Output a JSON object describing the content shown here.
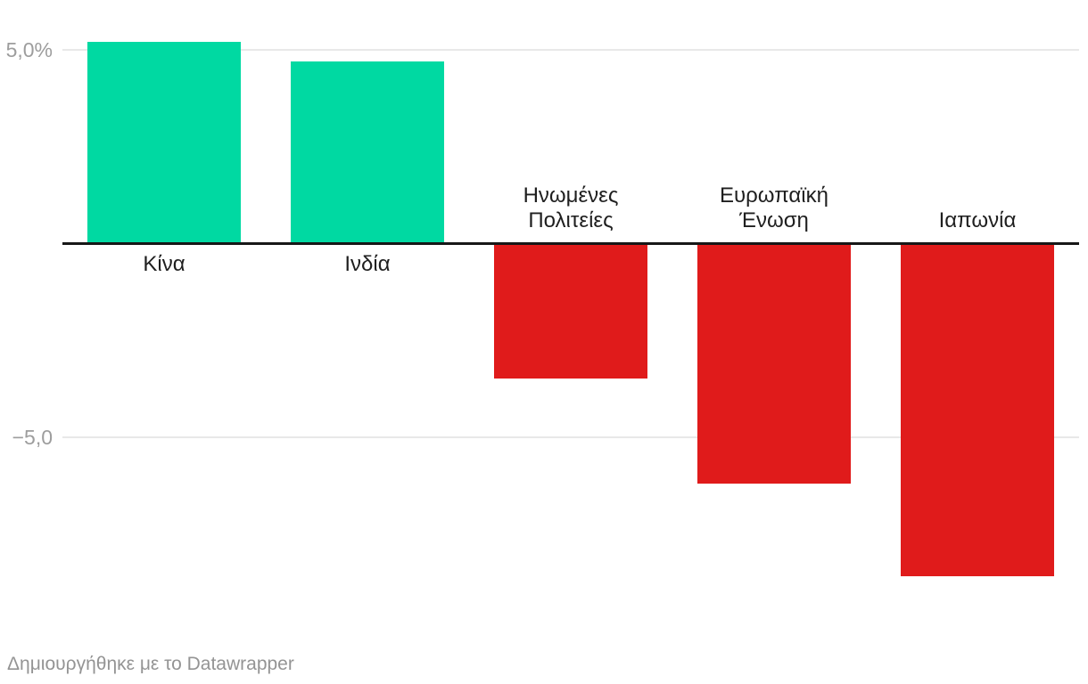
{
  "chart_data": {
    "type": "bar",
    "categories": [
      "Κίνα",
      "Ινδία",
      "Ηνωμένες\nΠολιτείες",
      "Ευρωπαϊκή\nΈνωση",
      "Ιαπωνία"
    ],
    "values": [
      5.2,
      4.7,
      -3.5,
      -6.2,
      -8.6
    ],
    "unit": "%",
    "title": "",
    "xlabel": "",
    "ylabel": "",
    "ylim": [
      -10,
      6.3
    ],
    "yticks": [
      {
        "value": 5,
        "label": "5,0%"
      },
      {
        "value": -5,
        "label": "−5,0"
      }
    ],
    "grid": true,
    "legend": "none",
    "colors": {
      "positive_bar": "#00d9a2",
      "negative_bar": "#e01b1b",
      "baseline": "#171717",
      "gridline": "#e8e8e8",
      "tick_label": "#9d9d9d",
      "category_label": "#1f1f1f"
    }
  },
  "footer": {
    "attribution": "Δημιουργήθηκε με το Datawrapper"
  }
}
